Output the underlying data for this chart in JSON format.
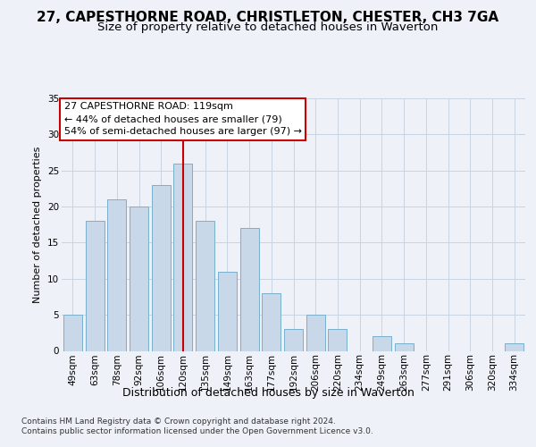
{
  "title": "27, CAPESTHORNE ROAD, CHRISTLETON, CHESTER, CH3 7GA",
  "subtitle": "Size of property relative to detached houses in Waverton",
  "xlabel": "Distribution of detached houses by size in Waverton",
  "ylabel": "Number of detached properties",
  "categories": [
    "49sqm",
    "63sqm",
    "78sqm",
    "92sqm",
    "106sqm",
    "120sqm",
    "135sqm",
    "149sqm",
    "163sqm",
    "177sqm",
    "192sqm",
    "206sqm",
    "220sqm",
    "234sqm",
    "249sqm",
    "263sqm",
    "277sqm",
    "291sqm",
    "306sqm",
    "320sqm",
    "334sqm"
  ],
  "values": [
    5,
    18,
    21,
    20,
    23,
    26,
    18,
    11,
    17,
    8,
    3,
    5,
    3,
    0,
    2,
    1,
    0,
    0,
    0,
    0,
    1
  ],
  "bar_color": "#c8d8e8",
  "bar_edge_color": "#7ab0cc",
  "highlight_x": "120sqm",
  "highlight_line_color": "#cc0000",
  "annotation_line1": "27 CAPESTHORNE ROAD: 119sqm",
  "annotation_line2": "← 44% of detached houses are smaller (79)",
  "annotation_line3": "54% of semi-detached houses are larger (97) →",
  "annotation_box_color": "#ffffff",
  "annotation_box_edge_color": "#cc0000",
  "grid_color": "#c8d4e0",
  "background_color": "#eef2f8",
  "plot_bg_color": "#eef2f8",
  "footer_text": "Contains HM Land Registry data © Crown copyright and database right 2024.\nContains public sector information licensed under the Open Government Licence v3.0.",
  "ylim": [
    0,
    35
  ],
  "yticks": [
    0,
    5,
    10,
    15,
    20,
    25,
    30,
    35
  ],
  "title_fontsize": 11,
  "subtitle_fontsize": 9.5,
  "xlabel_fontsize": 9,
  "ylabel_fontsize": 8,
  "tick_fontsize": 7.5,
  "annotation_fontsize": 8,
  "footer_fontsize": 6.5
}
